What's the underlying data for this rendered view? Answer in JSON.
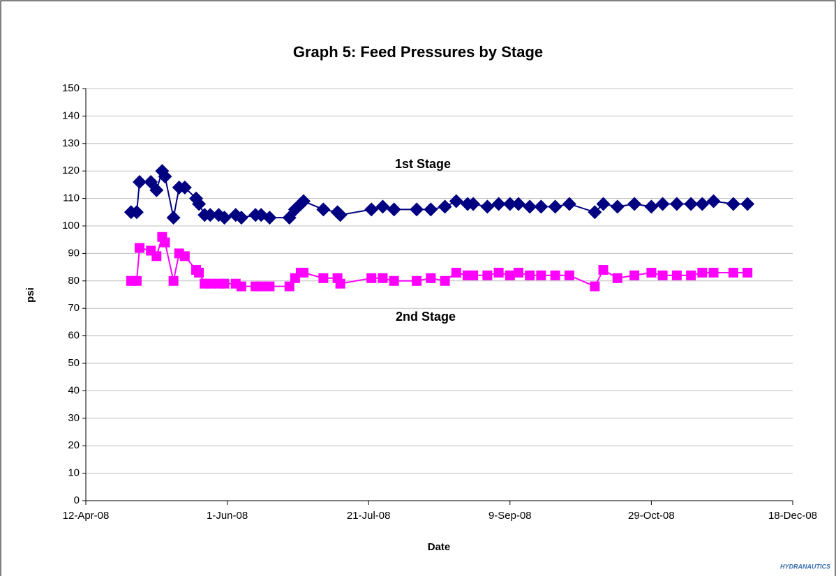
{
  "chart_data": {
    "type": "line",
    "title": "Graph 5:  Feed Pressures by Stage",
    "x_label": "Date",
    "y_label": "psi",
    "annotations": [
      "1st Stage",
      "2nd Stage"
    ],
    "logo": "HYDRANAUTICS",
    "x": [
      "2008-04-28",
      "2008-04-30",
      "2008-05-01",
      "2008-05-05",
      "2008-05-07",
      "2008-05-09",
      "2008-05-10",
      "2008-05-13",
      "2008-05-15",
      "2008-05-17",
      "2008-05-21",
      "2008-05-22",
      "2008-05-24",
      "2008-05-26",
      "2008-05-29",
      "2008-05-31",
      "2008-06-04",
      "2008-06-06",
      "2008-06-11",
      "2008-06-13",
      "2008-06-16",
      "2008-06-23",
      "2008-06-25",
      "2008-06-27",
      "2008-06-28",
      "2008-07-05",
      "2008-07-10",
      "2008-07-11",
      "2008-07-22",
      "2008-07-26",
      "2008-07-30",
      "2008-08-07",
      "2008-08-12",
      "2008-08-17",
      "2008-08-21",
      "2008-08-25",
      "2008-08-27",
      "2008-09-01",
      "2008-09-05",
      "2008-09-09",
      "2008-09-12",
      "2008-09-16",
      "2008-09-20",
      "2008-09-25",
      "2008-09-30",
      "2008-10-09",
      "2008-10-12",
      "2008-10-17",
      "2008-10-23",
      "2008-10-29",
      "2008-11-02",
      "2008-11-07",
      "2008-11-12",
      "2008-11-16",
      "2008-11-20",
      "2008-11-27",
      "2008-12-02"
    ],
    "series": [
      {
        "name": "1st Stage",
        "color": "#000080",
        "marker": "diamond",
        "values": [
          105,
          105,
          116,
          116,
          113,
          120,
          118,
          103,
          114,
          114,
          110,
          108,
          104,
          104,
          104,
          103,
          104,
          103,
          104,
          104,
          103,
          103,
          106,
          108,
          109,
          106,
          105,
          104,
          106,
          107,
          106,
          106,
          106,
          107,
          109,
          108,
          108,
          107,
          108,
          108,
          108,
          107,
          107,
          107,
          108,
          105,
          108,
          107,
          108,
          107,
          108,
          108,
          108,
          108,
          109,
          108,
          108
        ]
      },
      {
        "name": "2nd Stage",
        "color": "#ff00ff",
        "marker": "square",
        "values": [
          80,
          80,
          92,
          91,
          89,
          96,
          94,
          80,
          90,
          89,
          84,
          83,
          79,
          79,
          79,
          79,
          79,
          78,
          78,
          78,
          78,
          78,
          81,
          83,
          83,
          81,
          81,
          79,
          81,
          81,
          80,
          80,
          81,
          80,
          83,
          82,
          82,
          82,
          83,
          82,
          83,
          82,
          82,
          82,
          82,
          78,
          84,
          81,
          82,
          83,
          82,
          82,
          82,
          83,
          83,
          83,
          83
        ]
      }
    ],
    "xlim": [
      "2008-04-12",
      "2008-12-18"
    ],
    "xticks": [
      {
        "value": "2008-04-12",
        "label": "12-Apr-08"
      },
      {
        "value": "2008-06-01",
        "label": "1-Jun-08"
      },
      {
        "value": "2008-07-21",
        "label": "21-Jul-08"
      },
      {
        "value": "2008-09-09",
        "label": "9-Sep-08"
      },
      {
        "value": "2008-10-29",
        "label": "29-Oct-08"
      },
      {
        "value": "2008-12-18",
        "label": "18-Dec-08"
      }
    ],
    "ylim": [
      0,
      150
    ],
    "yticks": [
      0,
      10,
      20,
      30,
      40,
      50,
      60,
      70,
      80,
      90,
      100,
      110,
      120,
      130,
      140,
      150
    ],
    "grid": true
  }
}
